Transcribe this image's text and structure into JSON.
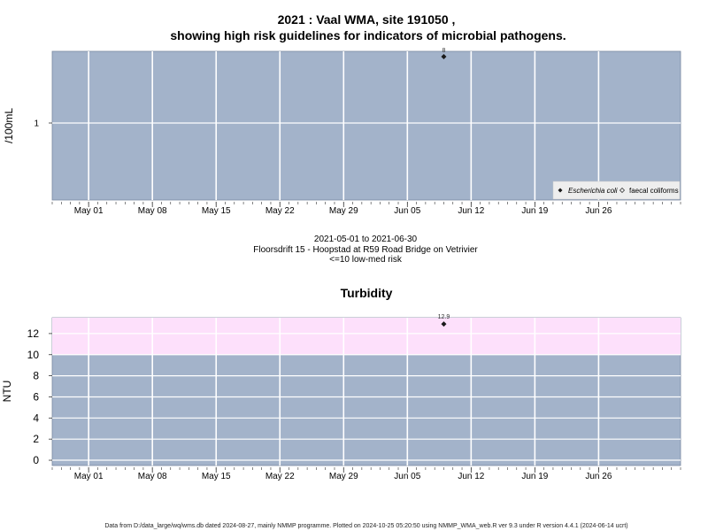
{
  "header": {
    "title_line1": "2021 : Vaal WMA, site 191050 ,",
    "title_line2": "showing high risk guidelines for indicators of microbial pathogens."
  },
  "colors": {
    "panel_bg": "#a3b3ca",
    "high_risk_band": "#fde0fb",
    "grid": "#ffffff",
    "point": "#1a1a1a"
  },
  "caption": {
    "line1": "2021-05-01 to 2021-06-30",
    "line2": "Floorsdrift 15 - Hoopstad at R59 Road Bridge on Vetrivier",
    "line3": "<=10 low-med risk"
  },
  "footer": {
    "text": "Data from D:/data_large/wq/wms.db dated 2024-08-27, mainly NMMP programme. Plotted on 2024-10-25 05:20:50 using NMMP_WMA_web.R ver 9.3 under R version 4.4.1 (2024-06-14 ucrt)"
  },
  "chart_data": [
    {
      "type": "scatter",
      "title": "",
      "xlabel": "",
      "ylabel": "/100mL",
      "y_scale": "log",
      "xlim": [
        "2021-04-27",
        "2021-07-05"
      ],
      "x_ticks": [
        "2021-05-01",
        "2021-05-08",
        "2021-05-15",
        "2021-05-22",
        "2021-05-29",
        "2021-06-05",
        "2021-06-12",
        "2021-06-19",
        "2021-06-26"
      ],
      "x_tick_labels": [
        "May 01",
        "May 08",
        "May 15",
        "May 22",
        "May 29",
        "Jun 05",
        "Jun 12",
        "Jun 19",
        "Jun 26"
      ],
      "y_ticks": [
        1
      ],
      "y_tick_labels": [
        "1"
      ],
      "grid": true,
      "legend_position": "bottom-right",
      "legend": [
        {
          "label": "Escherichia coli",
          "marker": "filled-diamond",
          "italic": true
        },
        {
          "label": "faecal coliforms",
          "marker": "open-diamond",
          "italic": false
        }
      ],
      "series": [
        {
          "name": "Escherichia coli",
          "x": [
            "2021-06-09"
          ],
          "y": [
            8
          ],
          "labels": [
            "8"
          ]
        }
      ]
    },
    {
      "type": "scatter",
      "title": "Turbidity",
      "xlabel": "",
      "ylabel": "NTU",
      "xlim": [
        "2021-04-27",
        "2021-07-05"
      ],
      "ylim": [
        -0.5,
        13.5
      ],
      "x_ticks": [
        "2021-05-01",
        "2021-05-08",
        "2021-05-15",
        "2021-05-22",
        "2021-05-29",
        "2021-06-05",
        "2021-06-12",
        "2021-06-19",
        "2021-06-26"
      ],
      "x_tick_labels": [
        "May 01",
        "May 08",
        "May 15",
        "May 22",
        "May 29",
        "Jun 05",
        "Jun 12",
        "Jun 19",
        "Jun 26"
      ],
      "y_ticks": [
        0,
        2,
        4,
        6,
        8,
        10,
        12
      ],
      "y_tick_labels": [
        "0",
        "2",
        "4",
        "6",
        "8",
        "10",
        "12"
      ],
      "grid": true,
      "high_risk_threshold": 10,
      "series": [
        {
          "x": [
            "2021-06-09"
          ],
          "y": [
            12.9
          ],
          "labels": [
            "12.9"
          ]
        }
      ]
    }
  ]
}
